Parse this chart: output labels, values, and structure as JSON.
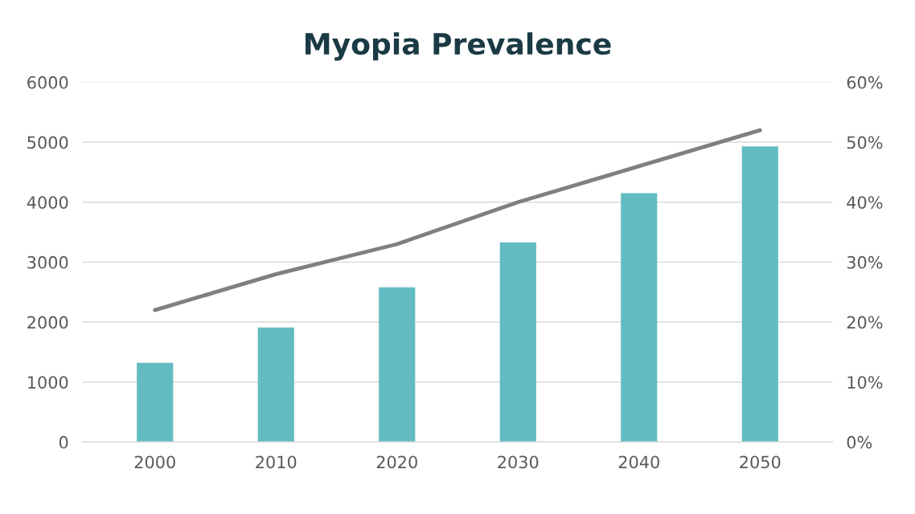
{
  "chart_data": {
    "type": "bar",
    "title": "Myopia Prevalence",
    "categories": [
      "2000",
      "2010",
      "2020",
      "2030",
      "2040",
      "2050"
    ],
    "series": [
      {
        "color": "#62bcc2",
        "values": [
          1320,
          1910,
          2580,
          3330,
          4150,
          4930
        ]
      },
      {
        "type": "line",
        "axis": "y2",
        "color": "#808080",
        "values": [
          22,
          28,
          33,
          40,
          46,
          52
        ]
      }
    ],
    "ylim": [
      0,
      6000
    ],
    "yticks": [
      0,
      1000,
      2000,
      3000,
      4000,
      5000,
      6000
    ],
    "y2lim": [
      0,
      60
    ],
    "y2ticks": [
      {
        "value": 0,
        "label": "0%"
      },
      {
        "value": 10,
        "label": "10%"
      },
      {
        "value": 20,
        "label": "20%"
      },
      {
        "value": 30,
        "label": "30%"
      },
      {
        "value": 40,
        "label": "40%"
      },
      {
        "value": 50,
        "label": "50%"
      },
      {
        "value": 60,
        "label": "60%"
      }
    ],
    "grid": "y",
    "marker": "none",
    "line_style": "solid"
  }
}
